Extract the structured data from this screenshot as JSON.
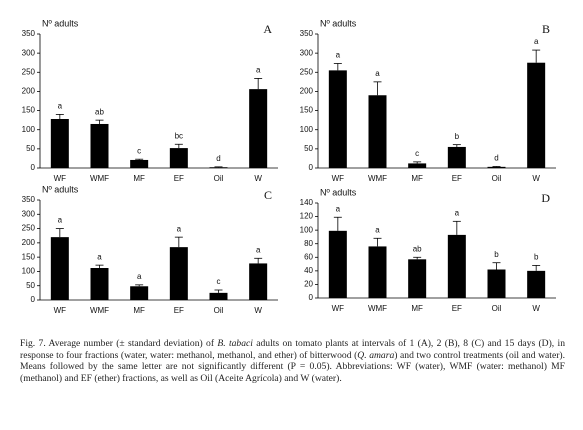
{
  "chart_data": [
    {
      "type": "bar",
      "panel": "A",
      "ylabel": "Nº adults",
      "color": "#000000",
      "categories": [
        "WF",
        "WMF",
        "MF",
        "EF",
        "Oil",
        "W"
      ],
      "values": [
        128,
        115,
        21,
        52,
        2,
        206
      ],
      "errors": [
        12,
        10,
        2,
        10,
        1,
        28
      ],
      "letters": [
        "a",
        "ab",
        "c",
        "bc",
        "d",
        "a"
      ],
      "ylim": [
        0,
        350
      ],
      "yticks": [
        0,
        50,
        100,
        150,
        200,
        250,
        300,
        350
      ]
    },
    {
      "type": "bar",
      "panel": "B",
      "ylabel": "Nº adults",
      "color": "#000000",
      "categories": [
        "WF",
        "WMF",
        "MF",
        "EF",
        "Oil",
        "W"
      ],
      "values": [
        255,
        190,
        12,
        55,
        3,
        275
      ],
      "errors": [
        18,
        35,
        4,
        6,
        1,
        33
      ],
      "letters": [
        "a",
        "a",
        "c",
        "b",
        "d",
        "a"
      ],
      "ylim": [
        0,
        350
      ],
      "yticks": [
        0,
        50,
        100,
        150,
        200,
        250,
        300,
        350
      ]
    },
    {
      "type": "bar",
      "panel": "C",
      "ylabel": "Nº adults",
      "color": "#000000",
      "categories": [
        "WF",
        "WMF",
        "MF",
        "EF",
        "Oil",
        "W"
      ],
      "values": [
        220,
        112,
        48,
        185,
        25,
        128
      ],
      "errors": [
        30,
        10,
        5,
        35,
        10,
        18
      ],
      "letters": [
        "a",
        "a",
        "a",
        "a",
        "c",
        "a"
      ],
      "ylim": [
        0,
        350
      ],
      "yticks": [
        0,
        50,
        100,
        150,
        200,
        250,
        300,
        350
      ]
    },
    {
      "type": "bar",
      "panel": "D",
      "ylabel": "Nº adults",
      "color": "#000000",
      "categories": [
        "WF",
        "WMF",
        "MF",
        "EF",
        "Oil",
        "W"
      ],
      "values": [
        99,
        76,
        57,
        93,
        42,
        40
      ],
      "errors": [
        20,
        12,
        3,
        20,
        10,
        8
      ],
      "letters": [
        "a",
        "a",
        "ab",
        "a",
        "b",
        "b"
      ],
      "ylim": [
        0,
        140
      ],
      "yticks": [
        0,
        20,
        40,
        60,
        80,
        100,
        120,
        140
      ]
    }
  ],
  "caption": [
    "Fig. 7. Average number (± standard deviation) of ",
    "B. tabaci",
    " adults on tomato plants at intervals of 1 (A), 2 (B), 8 (C) and 15 days (D), in response to four fractions (water, water: methanol, methanol, and ether) of bitterwood (",
    "Q. amara",
    ") and two control treatments (oil and water). Means followed by the same letter are not significantly different (P = 0.05). Abbreviations: WF (water), WMF (water: methanol) MF (methanol) and EF (ether) fractions, as well as Oil (Aceite Agrícola) and W (water)."
  ]
}
